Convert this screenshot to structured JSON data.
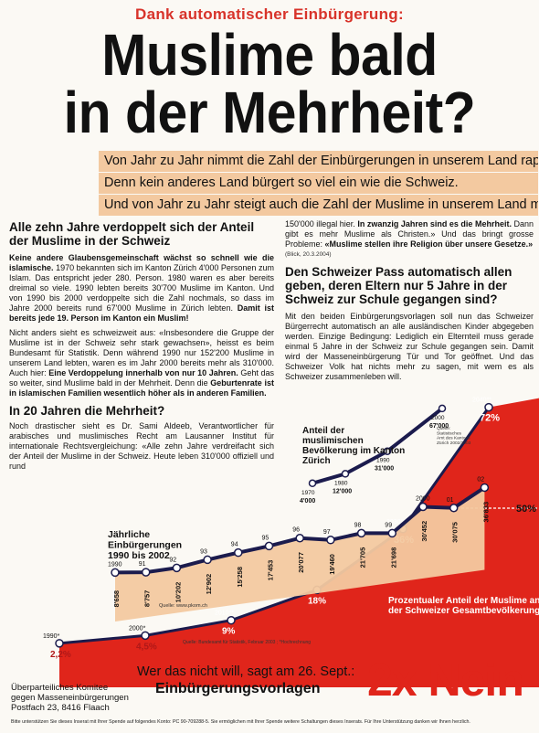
{
  "kicker": "Dank automatischer Einbürgerung:",
  "headline": {
    "line1": "Muslime bald",
    "line2": "in der Mehrheit?"
  },
  "lead": [
    "Von Jahr zu Jahr nimmt die Zahl der Einbürgerungen in unserem Land rapide zu.",
    "Denn kein anderes Land bürgert so viel ein wie die Schweiz.",
    "Und von Jahr zu Jahr steigt auch die Zahl der Muslime in unserem Land massiv an."
  ],
  "col_left": {
    "heading1": "Alle zehn Jahre verdoppelt sich der Anteil der Muslime in der Schweiz",
    "para1_bold": "Keine andere Glaubensgemeinschaft wächst so schnell wie die islamische.",
    "para1": " 1970 bekannten sich im Kanton Zürich 4'000 Personen zum Islam. Das entspricht jeder 280. Person. 1980 waren es aber bereits dreimal so viele. 1990 lebten bereits 30'700 Muslime im Kanton. Und von 1990 bis 2000 verdoppelte sich die Zahl nochmals, so dass im Jahre 2000 bereits rund 67'000 Muslime in Zürich lebten. ",
    "para1_end": "Damit ist bereits jede 19. Person im Kanton ein Muslim!",
    "para2": "Nicht anders sieht es schweizweit aus: «Insbesondere die Gruppe der Muslime ist in der Schweiz sehr stark gewachsen», heisst es beim Bundesamt für Statistik. Denn während 1990 nur 152'200 Muslime in unserem Land lebten, waren es im Jahr 2000 bereits mehr als 310'000. Auch hier: ",
    "para2_bold": "Eine Verdoppelung innerhalb von nur 10 Jahren.",
    "para2b": " Geht das so weiter, sind Muslime bald in der Mehrheit. Denn die ",
    "para2_end": "Geburtenrate ist in islamischen Familien wesentlich höher als in anderen Familien.",
    "heading2": "In 20 Jahren die Mehrheit?",
    "para3": "Noch drastischer sieht es Dr. Sami Aldeeb, Verantwortlicher für arabisches und muslimisches Recht am Lausanner Institut für internationale Rechtsvergleichung: «Alle zehn Jahre verdreifacht sich der Anteil der Muslime in der Schweiz. Heute leben 310'000 offiziell und rund"
  },
  "col_right": {
    "para0": "150'000 illegal hier. ",
    "para0_bold": "In zwanzig Jahren sind es die Mehrheit.",
    "para0b": " Dann gibt es mehr Muslime als Christen.» Und das bringt grosse Probleme: ",
    "para0_bold2": "«Muslime stellen ihre Religion über unsere Gesetze.»",
    "citation": "(Blick, 20.3.2004)",
    "heading": "Den Schweizer Pass automatisch allen geben, deren Eltern nur 5 Jahre in der Schweiz zur Schule gegangen sind?",
    "para1": "Mit den beiden Einbürgerungsvorlagen soll nun das Schweizer Bürgerrecht automatisch an alle ausländischen Kinder abgegeben werden. Einzige Bedingung: Lediglich ein Elternteil muss gerade einmal 5 Jahre in der Schweiz zur Schule gegangen sein. Damit wird der Masseneinbürgerung Tür und Tor geöffnet. Und das Schweizer Volk hat nichts mehr zu sagen, mit wem es als Schweizer zusammenleben will."
  },
  "chart_data": [
    {
      "type": "line",
      "title": "Jährliche Einbürgerungen 1990 bis 2002",
      "source": "Quelle: www.pkom.ch",
      "categories": [
        "1990",
        "91",
        "92",
        "93",
        "94",
        "95",
        "96",
        "97",
        "98",
        "99",
        "2000",
        "01",
        "02"
      ],
      "values": [
        8658,
        8757,
        10202,
        12902,
        15258,
        17453,
        20077,
        19460,
        21705,
        21698,
        30452,
        30075,
        36833
      ],
      "labels": [
        "8'658",
        "8'757",
        "10'202",
        "12'902",
        "15'258",
        "17'453",
        "20'077",
        "19'460",
        "21'705",
        "21'698",
        "30'452",
        "30'075",
        "36'833"
      ],
      "fill_color": "#f3c9a0",
      "line_color": "#1b1b4d"
    },
    {
      "type": "line",
      "title": "Anteil der muslimischen Bevölkerung im Kanton Zürich",
      "source": "Quelle: Statistisches Amt des Kantons Zürich 2002/2003",
      "categories": [
        "1970",
        "1980",
        "1990",
        "2000"
      ],
      "values": [
        4000,
        12000,
        31000,
        67000
      ],
      "labels": [
        "4'000",
        "12'000",
        "31'000",
        "67'000"
      ]
    },
    {
      "type": "area",
      "title": "Prozentualer Anteil der Muslime an der Schweizer Gesamtbevölkerung",
      "source": "Quelle: Bundesamt für Statistik, Februar 2003 ; *Hochrechnung",
      "categories": [
        "1990*",
        "2000*",
        "2010**",
        "2020**",
        "2030**",
        "2040**"
      ],
      "values": [
        2.2,
        4.5,
        9,
        18,
        36,
        72
      ],
      "labels": [
        "2,2%",
        "4,5%",
        "9%",
        "18%",
        "36%",
        "72%"
      ],
      "fill_color": "#e0251b",
      "threshold_label": "50%"
    }
  ],
  "footer": {
    "slogan": "Wer das nicht will, sagt am 26. Sept.:",
    "vorlagen": "Einbürgerungsvorlagen",
    "nein": "2x Nein",
    "committee1": "Überparteiliches Komitee",
    "committee2": "gegen Masseneinbürgerungen",
    "committee3": "Postfach 23, 8416 Flaach",
    "finepring": "Bitte unterstützen Sie dieses Inserat mit Ihrer Spende auf folgendes Konto: PC 90-709288-5. Sie ermöglichen mit Ihrer Spende weitere Schaltungen dieses Inserats. Für Ihre Unterstützung danken wir Ihnen herzlich."
  }
}
